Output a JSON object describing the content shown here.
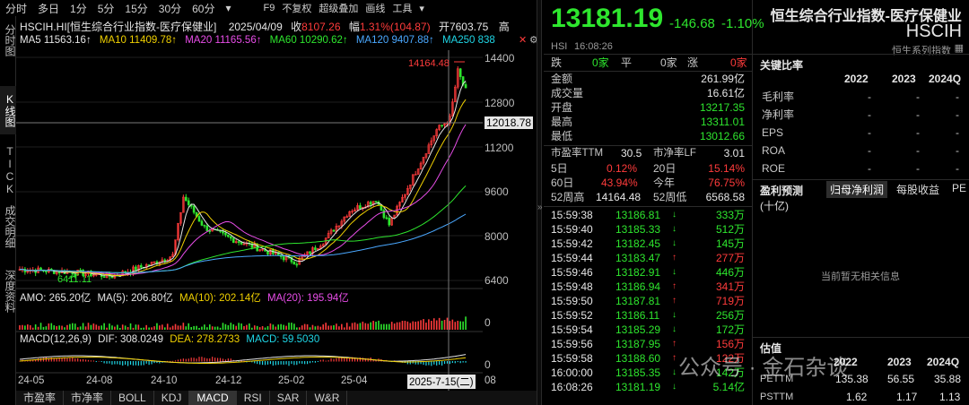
{
  "toolbar": {
    "tabs": [
      "分时",
      "多日",
      "1分",
      "5分",
      "15分",
      "30分",
      "60分"
    ],
    "f9": "F9",
    "fq": "不复权",
    "overlay": "超级叠加",
    "draw": "画线",
    "tools": "工具"
  },
  "sidebar": [
    "分时图",
    "K线图",
    "TICK",
    "成交明细",
    "深度资料"
  ],
  "info": {
    "code": "HSCIH.HI[恒生综合行业指数-医疗保健业]",
    "date": "2025/04/09",
    "close_label": "收",
    "close": "8107.26",
    "amp_label": "幅",
    "amp": "1.31%(104.87)",
    "open_label": "开",
    "open": "7603.75",
    "high_label": "高"
  },
  "ma": {
    "ma5": "MA5  11563.16↑",
    "ma10": "MA10  11409.78↑",
    "ma20": "MA20  11165.56↑",
    "ma60": "MA60  10290.62↑",
    "ma120": "MA120  9407.88↑",
    "ma250": "MA250  838"
  },
  "chart": {
    "price_ticks": [
      "14400",
      "12800",
      "11200",
      "9600",
      "8000",
      "6400"
    ],
    "crosshair_value": "12018.78",
    "max_label": "14164.48",
    "min_label": "6411.11",
    "x_ticks": [
      "24-05",
      "24-08",
      "24-10",
      "24-12",
      "25-02",
      "25-04"
    ],
    "cursor_date": "2025-7-15(二)",
    "x_end": "08"
  },
  "amo": {
    "label": "AMO: 265.20亿",
    "ma5": "MA(5): 206.80亿",
    "ma10": "MA(10): 202.14亿",
    "ma20": "MA(20): 195.94亿",
    "tick": "0"
  },
  "macd": {
    "label": "MACD(12,26,9)",
    "dif": "DIF: 308.0249",
    "dea": "DEA: 278.2733",
    "macd": "MACD: 59.5030",
    "tick": "0"
  },
  "bottom_tabs": [
    "市盈率",
    "市净率",
    "BOLL",
    "KDJ",
    "MACD",
    "RSI",
    "SAR",
    "W&R"
  ],
  "quote": {
    "price": "13181.19",
    "change": "-146.68",
    "change_pct": "-1.10%",
    "exchange": "HSI",
    "time": "16:08:26",
    "down_label": "跌",
    "down": "0家",
    "flat_label": "平",
    "flat": "0家",
    "up_label": "涨",
    "up": "0家",
    "amount_label": "金额",
    "amount": "261.99亿",
    "volume_label": "成交量",
    "volume": "16.61亿",
    "open_label": "开盘",
    "open": "13217.35",
    "high_label": "最高",
    "high": "13311.01",
    "low_label": "最低",
    "low": "13012.66",
    "pe_label": "市盈率TTM",
    "pe": "30.5",
    "pb_label": "市净率LF",
    "pb": "3.01",
    "d5_label": "5日",
    "d5": "0.12%",
    "d20_label": "20日",
    "d20": "15.14%",
    "d60_label": "60日",
    "d60": "43.94%",
    "ytd_label": "今年",
    "ytd": "76.75%",
    "w52h_label": "52周高",
    "w52h": "14164.48",
    "w52l_label": "52周低",
    "w52l": "6568.58"
  },
  "ticks": [
    {
      "t": "15:59:38",
      "p": "13186.81",
      "v": "333万",
      "dir": "down"
    },
    {
      "t": "15:59:40",
      "p": "13185.33",
      "v": "512万",
      "dir": "down"
    },
    {
      "t": "15:59:42",
      "p": "13182.45",
      "v": "145万",
      "dir": "down"
    },
    {
      "t": "15:59:44",
      "p": "13183.47",
      "v": "277万",
      "dir": "up"
    },
    {
      "t": "15:59:46",
      "p": "13182.91",
      "v": "446万",
      "dir": "down"
    },
    {
      "t": "15:59:48",
      "p": "13186.94",
      "v": "341万",
      "dir": "up"
    },
    {
      "t": "15:59:50",
      "p": "13187.81",
      "v": "719万",
      "dir": "up"
    },
    {
      "t": "15:59:52",
      "p": "13186.11",
      "v": "256万",
      "dir": "down"
    },
    {
      "t": "15:59:54",
      "p": "13185.29",
      "v": "172万",
      "dir": "down"
    },
    {
      "t": "15:59:56",
      "p": "13187.95",
      "v": "156万",
      "dir": "up"
    },
    {
      "t": "15:59:58",
      "p": "13188.60",
      "v": "122万",
      "dir": "up"
    },
    {
      "t": "16:00:00",
      "p": "13185.35",
      "v": "142万",
      "dir": "down"
    },
    {
      "t": "16:08:26",
      "p": "13181.19",
      "v": "5.14亿",
      "dir": "down"
    }
  ],
  "right": {
    "name": "恒生综合行业指数-医疗保健业",
    "code": "HSCIH",
    "series": "恒生系列指数",
    "ratio_title": "关键比率",
    "years": [
      "2022",
      "2023",
      "2024Q"
    ],
    "ratios": [
      {
        "label": "毛利率",
        "vals": [
          "-",
          "-",
          "-"
        ]
      },
      {
        "label": "净利率",
        "vals": [
          "-",
          "-",
          "-"
        ]
      },
      {
        "label": "EPS",
        "vals": [
          "-",
          "-",
          "-"
        ]
      },
      {
        "label": "ROA",
        "vals": [
          "-",
          "-",
          "-"
        ]
      },
      {
        "label": "ROE",
        "vals": [
          "-",
          "-",
          "-"
        ]
      }
    ],
    "forecast_title": "盈利预测",
    "forecast_tabs": [
      "归母净利润",
      "每股收益",
      "PE"
    ],
    "unit": "(十亿)",
    "no_data": "当前暂无相关信息",
    "val_title": "估值",
    "val_years": [
      "2022",
      "2023",
      "2024Q"
    ],
    "vals": [
      {
        "label": "PETTM",
        "vals": [
          "135.38",
          "56.55",
          "35.88"
        ]
      },
      {
        "label": "PSTTM",
        "vals": [
          "1.62",
          "1.17",
          "1.13"
        ]
      }
    ]
  },
  "watermark": "公众号 · 金石杂谈",
  "colors": {
    "up": "#ff3b3b",
    "down": "#2ee62e",
    "ma5": "#e6e6e6",
    "ma10": "#f0d000",
    "ma20": "#e84de8",
    "ma60": "#2ee62e",
    "ma120": "#4aa8ff"
  }
}
